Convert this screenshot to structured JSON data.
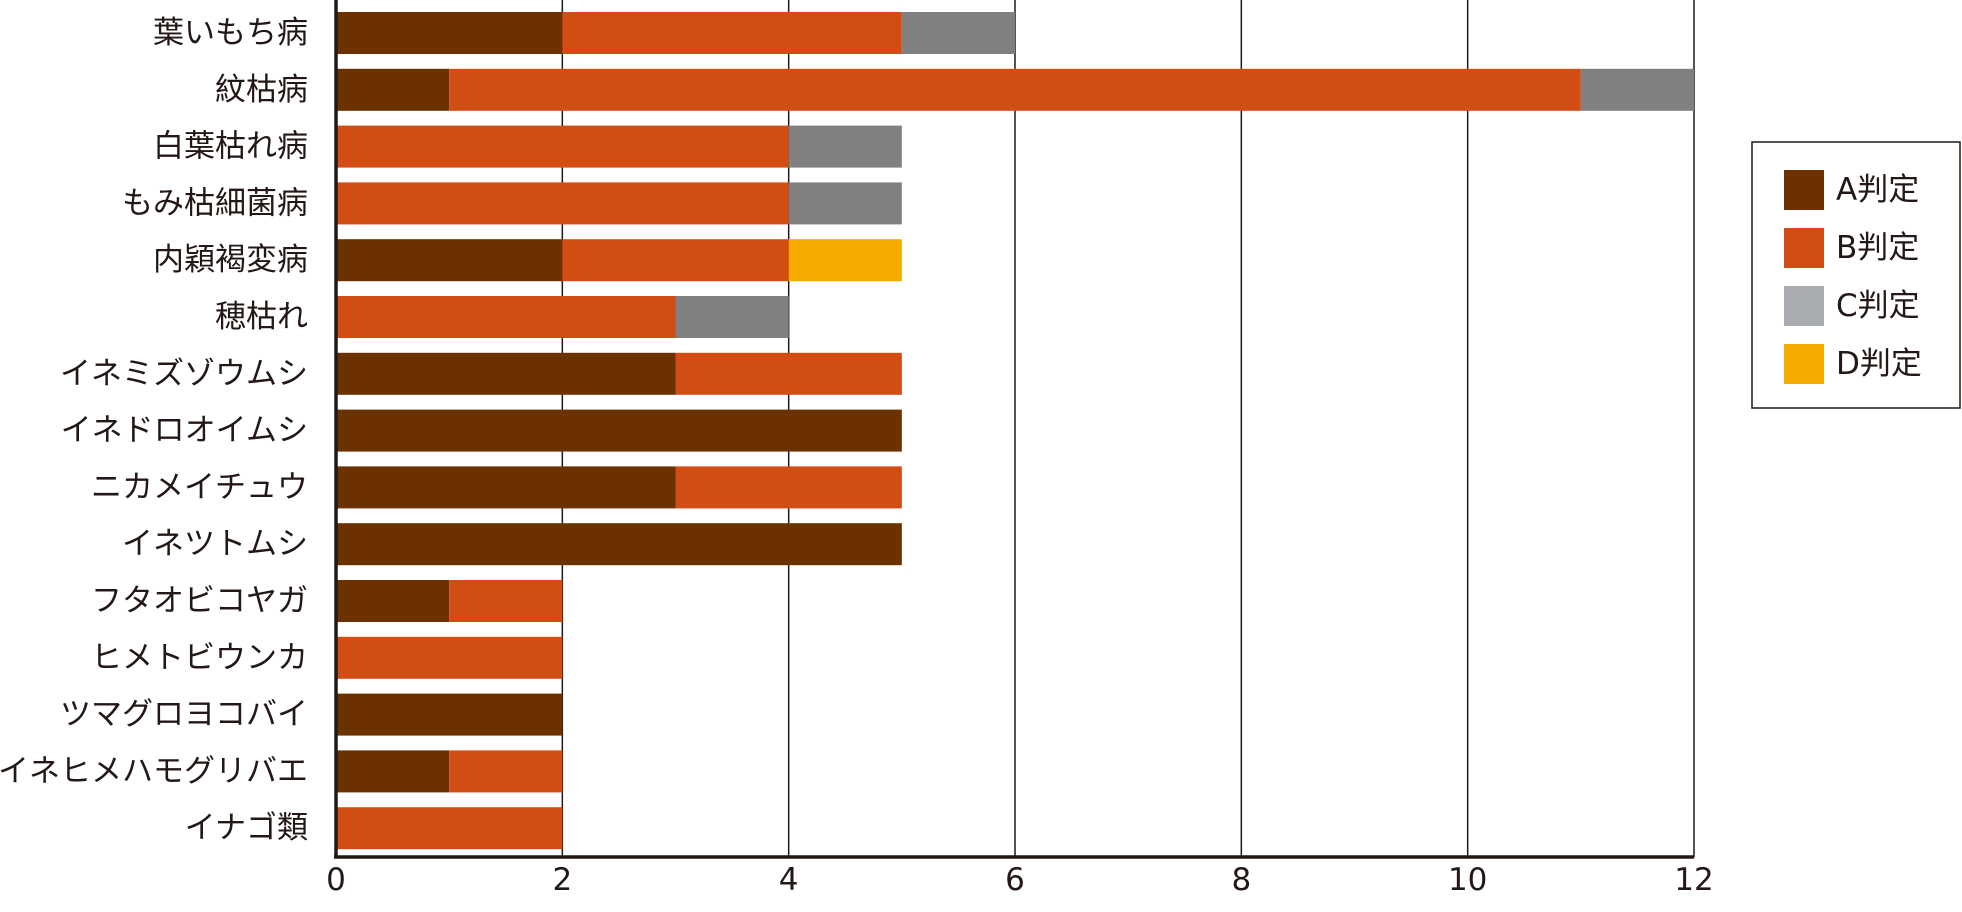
{
  "chart_data": {
    "type": "bar",
    "orientation": "horizontal",
    "stacked": true,
    "categories": [
      "葉いもち病",
      "紋枯病",
      "白葉枯れ病",
      "もみ枯細菌病",
      "内穎褐変病",
      "穂枯れ",
      "イネミズゾウムシ",
      "イネドロオイムシ",
      "ニカメイチュウ",
      "イネツトムシ",
      "フタオビコヤガ",
      "ヒメトビウンカ",
      "ツマグロヨコバイ",
      "イネヒメハモグリバエ",
      "イナゴ類"
    ],
    "series": [
      {
        "name": "A判定",
        "color": "#6b3200",
        "values": [
          2,
          1,
          0,
          0,
          2,
          0,
          3,
          5,
          3,
          5,
          1,
          0,
          2,
          1,
          0
        ]
      },
      {
        "name": "B判定",
        "color": "#d24d14",
        "values": [
          3,
          10,
          4,
          4,
          2,
          3,
          2,
          0,
          2,
          0,
          1,
          2,
          0,
          1,
          2
        ]
      },
      {
        "name": "C判定",
        "color": "#808080",
        "values": [
          1,
          1,
          1,
          1,
          0,
          1,
          0,
          0,
          0,
          0,
          0,
          0,
          0,
          0,
          0
        ]
      },
      {
        "name": "D判定",
        "color": "#f5ab00",
        "values": [
          0,
          0,
          0,
          0,
          1,
          0,
          0,
          0,
          0,
          0,
          0,
          0,
          0,
          0,
          0
        ]
      }
    ],
    "legend_swatch_colors": [
      "#6b3200",
      "#d24d14",
      "#a9acb0",
      "#f5ab00"
    ],
    "xlim": [
      0,
      12
    ],
    "xticks": [
      "0",
      "2",
      "4",
      "6",
      "8",
      "10",
      "12"
    ],
    "grid": "vertical",
    "legend_position": "right"
  }
}
